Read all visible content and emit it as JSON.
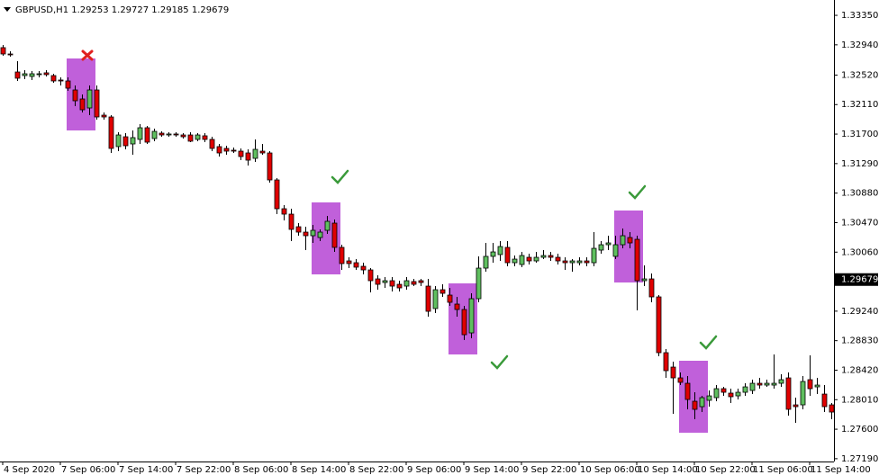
{
  "chart_data": {
    "type": "candlestick",
    "title": "GBPUSD,H1  1.29253 1.29727 1.29185 1.29679",
    "up_color": "#5fbf5f",
    "down_color": "#e00000",
    "open": [
      1.32901,
      1.32813,
      1.32563,
      1.32513,
      1.32501,
      1.32526,
      1.32551,
      1.32513,
      1.32451,
      1.32438,
      1.32313,
      1.32188,
      1.32063,
      1.32313,
      1.31963,
      1.31938,
      1.31526,
      1.31663,
      1.31563,
      1.31626,
      1.31788,
      1.31638,
      1.31713,
      1.31688,
      1.31701,
      1.31688,
      1.31688,
      1.31626,
      1.31676,
      1.31626,
      1.31526,
      1.31501,
      1.31476,
      1.31463,
      1.31438,
      1.31363,
      1.31463,
      1.31438,
      1.31063,
      1.30663,
      1.30588,
      1.30413,
      1.30338,
      1.30288,
      1.30263,
      1.30363,
      1.30463,
      1.30126,
      1.29938,
      1.29913,
      1.29863,
      1.29813,
      1.29688,
      1.29638,
      1.29663,
      1.29613,
      1.29588,
      1.29651,
      1.29663,
      1.29588,
      1.29276,
      1.29538,
      1.29463,
      1.29338,
      1.29263,
      1.28938,
      1.29413,
      1.29838,
      1.30001,
      1.30026,
      1.30126,
      1.29913,
      1.29888,
      1.29988,
      1.29938,
      1.29988,
      1.30013,
      1.29988,
      1.29938,
      1.29913,
      1.29913,
      1.29938,
      1.29913,
      1.30088,
      1.30163,
      1.30001,
      1.30163,
      1.30263,
      1.30238,
      1.29663,
      1.29688,
      1.29438,
      1.28663,
      1.28463,
      1.28313,
      1.28238,
      1.27988,
      1.27913,
      1.28001,
      1.28038,
      1.28163,
      1.28101,
      1.28063,
      1.28113,
      1.28138,
      1.28238,
      1.28213,
      1.28213,
      1.28238,
      1.28313,
      1.27938,
      1.27938,
      1.28288,
      1.28188,
      1.28088,
      1.27938
    ],
    "high": [
      1.32938,
      1.32851,
      1.32713,
      1.32588,
      1.32576,
      1.32576,
      1.32588,
      1.32538,
      1.32488,
      1.32488,
      1.32376,
      1.32251,
      1.32376,
      1.32376,
      1.32001,
      1.31963,
      1.31726,
      1.31713,
      1.31751,
      1.31838,
      1.31813,
      1.31776,
      1.31738,
      1.31726,
      1.31726,
      1.31713,
      1.31726,
      1.31713,
      1.31713,
      1.31663,
      1.31563,
      1.31538,
      1.31513,
      1.31501,
      1.31488,
      1.31626,
      1.31563,
      1.31463,
      1.31088,
      1.30713,
      1.30663,
      1.30463,
      1.30413,
      1.30438,
      1.30376,
      1.30563,
      1.30513,
      1.30163,
      1.29988,
      1.29963,
      1.29913,
      1.29838,
      1.29738,
      1.29713,
      1.29713,
      1.29663,
      1.29713,
      1.29688,
      1.29688,
      1.29688,
      1.29588,
      1.29613,
      1.29563,
      1.29438,
      1.29313,
      1.29488,
      1.30001,
      1.30188,
      1.30188,
      1.30213,
      1.30213,
      1.30013,
      1.30063,
      1.30038,
      1.30063,
      1.30088,
      1.30063,
      1.30038,
      1.29988,
      1.29963,
      1.29988,
      1.29988,
      1.30338,
      1.30213,
      1.30288,
      1.30288,
      1.30388,
      1.30338,
      1.30288,
      1.29876,
      1.29763,
      1.29463,
      1.28713,
      1.28538,
      1.28388,
      1.28338,
      1.28113,
      1.28063,
      1.28138,
      1.28213,
      1.28188,
      1.28163,
      1.28163,
      1.28238,
      1.28288,
      1.28313,
      1.28288,
      1.28638,
      1.28363,
      1.28388,
      1.28038,
      1.28338,
      1.28626,
      1.28313,
      1.28213,
      1.27963
    ],
    "low": [
      1.32788,
      1.32776,
      1.32438,
      1.32463,
      1.32451,
      1.32488,
      1.32501,
      1.32413,
      1.32376,
      1.32301,
      1.32088,
      1.32001,
      1.31963,
      1.31901,
      1.31901,
      1.31438,
      1.31463,
      1.31488,
      1.31413,
      1.31563,
      1.31563,
      1.31601,
      1.31663,
      1.31663,
      1.31663,
      1.31638,
      1.31588,
      1.31601,
      1.31588,
      1.31463,
      1.31388,
      1.31413,
      1.31438,
      1.31338,
      1.31263,
      1.31313,
      1.31413,
      1.31026,
      1.30588,
      1.30501,
      1.30213,
      1.30288,
      1.30088,
      1.30188,
      1.30213,
      1.30313,
      1.30063,
      1.29813,
      1.29838,
      1.29813,
      1.29751,
      1.29501,
      1.29538,
      1.29563,
      1.29513,
      1.29513,
      1.29538,
      1.29588,
      1.29588,
      1.29163,
      1.29213,
      1.29438,
      1.29313,
      1.29163,
      1.28838,
      1.28863,
      1.29363,
      1.29788,
      1.29913,
      1.29938,
      1.29863,
      1.29863,
      1.29851,
      1.29888,
      1.29913,
      1.29963,
      1.29938,
      1.29888,
      1.29813,
      1.29788,
      1.29876,
      1.29863,
      1.29863,
      1.30038,
      1.30088,
      1.29963,
      1.30113,
      1.30113,
      1.29251,
      1.29588,
      1.29363,
      1.28613,
      1.28313,
      1.27813,
      1.28213,
      1.27876,
      1.27738,
      1.27838,
      1.27913,
      1.27988,
      1.28063,
      1.27963,
      1.28013,
      1.28063,
      1.28088,
      1.28163,
      1.28188,
      1.28163,
      1.28188,
      1.27788,
      1.27688,
      1.27876,
      1.28063,
      1.28088,
      1.27838,
      1.27738
    ],
    "close": [
      1.32813,
      1.32801,
      1.32476,
      1.32538,
      1.32538,
      1.32538,
      1.32526,
      1.32438,
      1.32438,
      1.32338,
      1.32163,
      1.32038,
      1.32313,
      1.31938,
      1.31938,
      1.31501,
      1.31688,
      1.31538,
      1.31651,
      1.31788,
      1.31588,
      1.31738,
      1.31688,
      1.31701,
      1.31688,
      1.31663,
      1.31601,
      1.31688,
      1.31626,
      1.31501,
      1.31438,
      1.31463,
      1.31463,
      1.31388,
      1.31338,
      1.31488,
      1.31438,
      1.31063,
      1.30663,
      1.30588,
      1.30376,
      1.30338,
      1.30288,
      1.30363,
      1.30338,
      1.30488,
      1.30126,
      1.29901,
      1.29901,
      1.29851,
      1.29813,
      1.29663,
      1.29613,
      1.29663,
      1.29588,
      1.29563,
      1.29663,
      1.29613,
      1.29638,
      1.29238,
      1.29538,
      1.29488,
      1.29363,
      1.29263,
      1.28913,
      1.29413,
      1.29838,
      1.30001,
      1.30063,
      1.30138,
      1.29913,
      1.29963,
      1.30013,
      1.29938,
      1.29988,
      1.30013,
      1.29988,
      1.29938,
      1.29913,
      1.29938,
      1.29938,
      1.29913,
      1.30113,
      1.30163,
      1.30188,
      1.30163,
      1.30288,
      1.30188,
      1.29663,
      1.29688,
      1.29438,
      1.28663,
      1.28413,
      1.28313,
      1.28251,
      1.28013,
      1.27876,
      1.28038,
      1.28063,
      1.28163,
      1.28113,
      1.28051,
      1.28113,
      1.28188,
      1.28238,
      1.28213,
      1.28238,
      1.28238,
      1.28288,
      1.27876,
      1.27913,
      1.28263,
      1.28163,
      1.28213,
      1.27913,
      1.27838
    ],
    "xlim": [
      -0.375,
      115.375
    ],
    "xticks": [
      {
        "value": 0,
        "label": "4 Sep 2020"
      },
      {
        "value": 8,
        "label": "7 Sep 06:00"
      },
      {
        "value": 16,
        "label": "7 Sep 14:00"
      },
      {
        "value": 24,
        "label": "7 Sep 22:00"
      },
      {
        "value": 32,
        "label": "8 Sep 06:00"
      },
      {
        "value": 40,
        "label": "8 Sep 14:00"
      },
      {
        "value": 48,
        "label": "8 Sep 22:00"
      },
      {
        "value": 56,
        "label": "9 Sep 06:00"
      },
      {
        "value": 64,
        "label": "9 Sep 14:00"
      },
      {
        "value": 72,
        "label": "9 Sep 22:00"
      },
      {
        "value": 80,
        "label": "10 Sep 06:00"
      },
      {
        "value": 88,
        "label": "10 Sep 14:00"
      },
      {
        "value": 96,
        "label": "10 Sep 22:00"
      },
      {
        "value": 104,
        "label": "11 Sep 06:00"
      },
      {
        "value": 112,
        "label": "11 Sep 14:00"
      }
    ],
    "ylim": [
      1.27151,
      1.33563
    ],
    "yticks": [
      {
        "value": 1.3335,
        "label": "1.33350"
      },
      {
        "value": 1.3294,
        "label": "1.32940"
      },
      {
        "value": 1.3252,
        "label": "1.32520"
      },
      {
        "value": 1.3211,
        "label": "1.32110"
      },
      {
        "value": 1.317,
        "label": "1.31700"
      },
      {
        "value": 1.3129,
        "label": "1.31290"
      },
      {
        "value": 1.3088,
        "label": "1.30880"
      },
      {
        "value": 1.3047,
        "label": "1.30470"
      },
      {
        "value": 1.3006,
        "label": "1.30060"
      },
      {
        "value": 1.2924,
        "label": "1.29240"
      },
      {
        "value": 1.2883,
        "label": "1.28830"
      },
      {
        "value": 1.2842,
        "label": "1.28420"
      },
      {
        "value": 1.2801,
        "label": "1.28010"
      },
      {
        "value": 1.276,
        "label": "1.27600"
      },
      {
        "value": 1.2719,
        "label": "1.27190"
      }
    ],
    "last_price": 1.29679
  }
}
